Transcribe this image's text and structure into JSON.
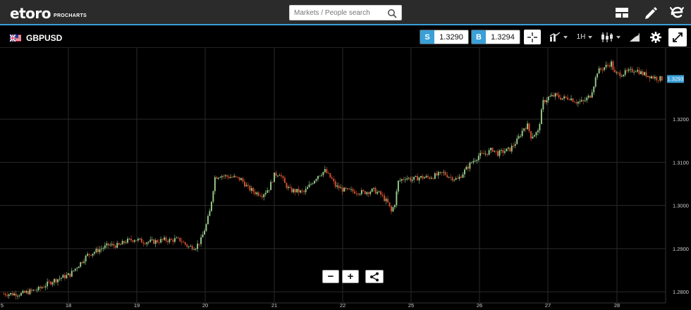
{
  "topbar": {
    "logo_text": "etoro",
    "logo_sub": "PROCHARTS",
    "search_placeholder": "Markets / People search",
    "icons": [
      "layout-icon",
      "pencil-icon",
      "etoro-e-icon"
    ]
  },
  "header": {
    "symbol": "GBPUSD",
    "sell_label": "S",
    "sell_price": "1.3290",
    "buy_label": "B",
    "buy_price": "1.3294",
    "timeframe": "1H"
  },
  "colors": {
    "up": "#9bd08e",
    "down": "#d9502f",
    "accent": "#3aa0d8",
    "grid": "#2a2a2a",
    "axis_text": "#cfcfcf"
  },
  "chart_data": {
    "type": "candlestick",
    "symbol": "GBPUSD",
    "interval": "1H",
    "x_ticks": [
      "5",
      "18",
      "19",
      "20",
      "21",
      "22",
      "25",
      "26",
      "27",
      "28"
    ],
    "y_ticks": [
      "1.3200",
      "1.3100",
      "1.3000",
      "1.2900",
      "1.2800"
    ],
    "y_range": [
      1.2774,
      1.3365
    ],
    "current_price": "1.3293",
    "grid": true,
    "close_path": [
      [
        0,
        1.2795
      ],
      [
        10,
        1.2795
      ],
      [
        20,
        1.2806
      ],
      [
        28,
        1.2825
      ],
      [
        38,
        1.284
      ],
      [
        48,
        1.2885
      ],
      [
        56,
        1.29
      ],
      [
        60,
        1.2908
      ],
      [
        66,
        1.2907
      ],
      [
        70,
        1.2917
      ],
      [
        75,
        1.2922
      ],
      [
        80,
        1.2916
      ],
      [
        86,
        1.2916
      ],
      [
        92,
        1.292
      ],
      [
        96,
        1.2919
      ],
      [
        98,
        1.2921
      ],
      [
        101,
        1.292
      ],
      [
        104,
        1.291
      ],
      [
        106,
        1.2904
      ],
      [
        110,
        1.2904
      ],
      [
        113,
        1.292
      ],
      [
        116,
        1.2955
      ],
      [
        118,
        1.2985
      ],
      [
        121,
        1.3065
      ],
      [
        124,
        1.307
      ],
      [
        128,
        1.3067
      ],
      [
        132,
        1.3065
      ],
      [
        136,
        1.306
      ],
      [
        140,
        1.304
      ],
      [
        144,
        1.303
      ],
      [
        148,
        1.3025
      ],
      [
        152,
        1.304
      ],
      [
        155,
        1.307
      ],
      [
        158,
        1.3075
      ],
      [
        161,
        1.305
      ],
      [
        164,
        1.3035
      ],
      [
        168,
        1.3033
      ],
      [
        172,
        1.303
      ],
      [
        176,
        1.305
      ],
      [
        180,
        1.307
      ],
      [
        184,
        1.308
      ],
      [
        188,
        1.306
      ],
      [
        190,
        1.3045
      ],
      [
        195,
        1.3035
      ],
      [
        200,
        1.3033
      ],
      [
        206,
        1.303
      ],
      [
        212,
        1.3035
      ],
      [
        216,
        1.3025
      ],
      [
        220,
        1.3005
      ],
      [
        222,
        1.2985
      ],
      [
        224,
        1.3005
      ],
      [
        226,
        1.3055
      ],
      [
        230,
        1.3065
      ],
      [
        234,
        1.306
      ],
      [
        238,
        1.3065
      ],
      [
        244,
        1.3065
      ],
      [
        248,
        1.307
      ],
      [
        252,
        1.3075
      ],
      [
        256,
        1.3065
      ],
      [
        260,
        1.306
      ],
      [
        264,
        1.308
      ],
      [
        268,
        1.31
      ],
      [
        272,
        1.3115
      ],
      [
        276,
        1.312
      ],
      [
        280,
        1.313
      ],
      [
        283,
        1.312
      ],
      [
        286,
        1.3125
      ],
      [
        290,
        1.313
      ],
      [
        294,
        1.315
      ],
      [
        298,
        1.318
      ],
      [
        300,
        1.3185
      ],
      [
        302,
        1.316
      ],
      [
        306,
        1.317
      ],
      [
        309,
        1.324
      ],
      [
        312,
        1.325
      ],
      [
        316,
        1.3255
      ],
      [
        320,
        1.3248
      ],
      [
        324,
        1.325
      ],
      [
        328,
        1.324
      ],
      [
        332,
        1.324
      ],
      [
        336,
        1.3255
      ],
      [
        338,
        1.328
      ],
      [
        340,
        1.331
      ],
      [
        344,
        1.332
      ],
      [
        348,
        1.333
      ],
      [
        350,
        1.3305
      ],
      [
        354,
        1.3305
      ],
      [
        358,
        1.331
      ],
      [
        362,
        1.3315
      ],
      [
        366,
        1.3305
      ],
      [
        370,
        1.33
      ],
      [
        374,
        1.3295
      ],
      [
        377,
        1.3293
      ]
    ]
  }
}
